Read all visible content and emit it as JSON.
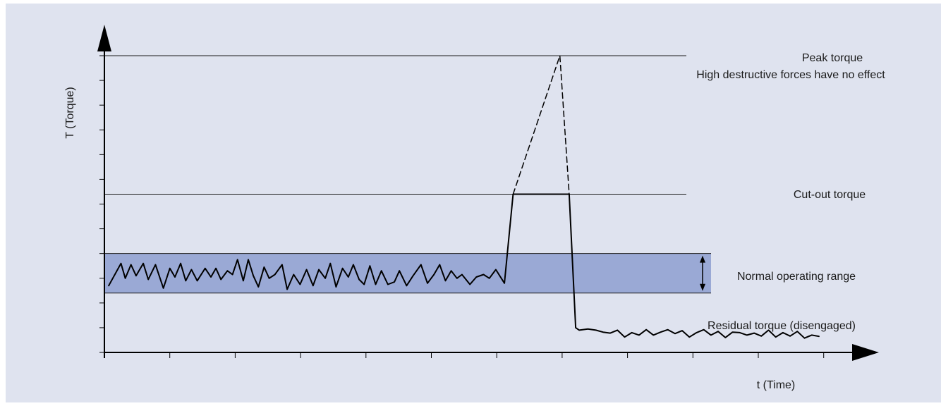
{
  "chart_data": {
    "type": "line",
    "title": "",
    "xlabel": "t (Time)",
    "ylabel": "T (Torque)",
    "xlim": [
      0,
      1
    ],
    "ylim": [
      0,
      12
    ],
    "grid": false,
    "ticks": {
      "x_count": 12,
      "y_count": 12,
      "labels": false
    },
    "levels": [
      {
        "name": "peak",
        "y": 12.0,
        "label": [
          "Peak torque",
          "High destructive forces have no effect"
        ]
      },
      {
        "name": "cutout",
        "y": 6.4,
        "label": [
          "Cut-out torque"
        ]
      }
    ],
    "band": {
      "y_from": 2.4,
      "y_to": 4.0,
      "label": "Normal operating range",
      "color": "#9aa9d5"
    },
    "residual_label": "Residual torque (disengaged)",
    "series": [
      {
        "style": "solid",
        "points": [
          [
            0.006,
            2.7
          ],
          [
            0.023,
            3.6
          ],
          [
            0.029,
            3.0
          ],
          [
            0.037,
            3.55
          ],
          [
            0.044,
            3.1
          ],
          [
            0.054,
            3.6
          ],
          [
            0.061,
            2.95
          ],
          [
            0.071,
            3.55
          ],
          [
            0.082,
            2.6
          ],
          [
            0.091,
            3.4
          ],
          [
            0.098,
            3.05
          ],
          [
            0.106,
            3.6
          ],
          [
            0.113,
            2.9
          ],
          [
            0.121,
            3.35
          ],
          [
            0.129,
            2.9
          ],
          [
            0.14,
            3.4
          ],
          [
            0.148,
            3.05
          ],
          [
            0.155,
            3.4
          ],
          [
            0.162,
            2.95
          ],
          [
            0.171,
            3.3
          ],
          [
            0.178,
            3.15
          ],
          [
            0.185,
            3.75
          ],
          [
            0.193,
            2.9
          ],
          [
            0.2,
            3.75
          ],
          [
            0.207,
            3.1
          ],
          [
            0.214,
            2.65
          ],
          [
            0.222,
            3.45
          ],
          [
            0.229,
            3.0
          ],
          [
            0.237,
            3.15
          ],
          [
            0.247,
            3.55
          ],
          [
            0.254,
            2.55
          ],
          [
            0.263,
            3.15
          ],
          [
            0.272,
            2.75
          ],
          [
            0.281,
            3.35
          ],
          [
            0.29,
            2.7
          ],
          [
            0.298,
            3.35
          ],
          [
            0.307,
            3.0
          ],
          [
            0.314,
            3.6
          ],
          [
            0.322,
            2.65
          ],
          [
            0.331,
            3.4
          ],
          [
            0.339,
            3.05
          ],
          [
            0.346,
            3.55
          ],
          [
            0.354,
            2.95
          ],
          [
            0.361,
            2.75
          ],
          [
            0.369,
            3.5
          ],
          [
            0.377,
            2.75
          ],
          [
            0.385,
            3.3
          ],
          [
            0.394,
            2.75
          ],
          [
            0.403,
            2.85
          ],
          [
            0.41,
            3.3
          ],
          [
            0.42,
            2.7
          ],
          [
            0.429,
            3.1
          ],
          [
            0.44,
            3.55
          ],
          [
            0.449,
            2.8
          ],
          [
            0.458,
            3.15
          ],
          [
            0.466,
            3.55
          ],
          [
            0.474,
            2.9
          ],
          [
            0.482,
            3.3
          ],
          [
            0.49,
            3.0
          ],
          [
            0.497,
            3.15
          ],
          [
            0.508,
            2.75
          ],
          [
            0.517,
            3.05
          ],
          [
            0.527,
            3.15
          ],
          [
            0.535,
            3.0
          ],
          [
            0.544,
            3.35
          ],
          [
            0.556,
            2.8
          ],
          [
            0.568,
            6.4
          ],
          [
            0.646,
            6.4
          ],
          [
            0.655,
            1.0
          ],
          [
            0.66,
            0.9
          ],
          [
            0.672,
            0.95
          ],
          [
            0.683,
            0.9
          ],
          [
            0.693,
            0.82
          ],
          [
            0.703,
            0.78
          ],
          [
            0.713,
            0.9
          ],
          [
            0.723,
            0.62
          ],
          [
            0.733,
            0.8
          ],
          [
            0.743,
            0.7
          ],
          [
            0.753,
            0.92
          ],
          [
            0.763,
            0.7
          ],
          [
            0.773,
            0.82
          ],
          [
            0.783,
            0.92
          ],
          [
            0.793,
            0.76
          ],
          [
            0.803,
            0.88
          ],
          [
            0.813,
            0.62
          ],
          [
            0.823,
            0.8
          ],
          [
            0.833,
            0.92
          ],
          [
            0.843,
            0.7
          ],
          [
            0.853,
            0.85
          ],
          [
            0.863,
            0.6
          ],
          [
            0.873,
            0.82
          ],
          [
            0.883,
            0.8
          ],
          [
            0.893,
            0.7
          ],
          [
            0.903,
            0.78
          ],
          [
            0.913,
            0.66
          ],
          [
            0.923,
            0.9
          ],
          [
            0.933,
            0.62
          ],
          [
            0.943,
            0.8
          ],
          [
            0.953,
            0.66
          ],
          [
            0.963,
            0.85
          ],
          [
            0.973,
            0.58
          ],
          [
            0.983,
            0.7
          ],
          [
            0.993,
            0.65
          ]
        ]
      },
      {
        "style": "dashed",
        "points": [
          [
            0.568,
            6.4
          ],
          [
            0.633,
            12.0
          ],
          [
            0.646,
            6.4
          ]
        ]
      }
    ]
  }
}
